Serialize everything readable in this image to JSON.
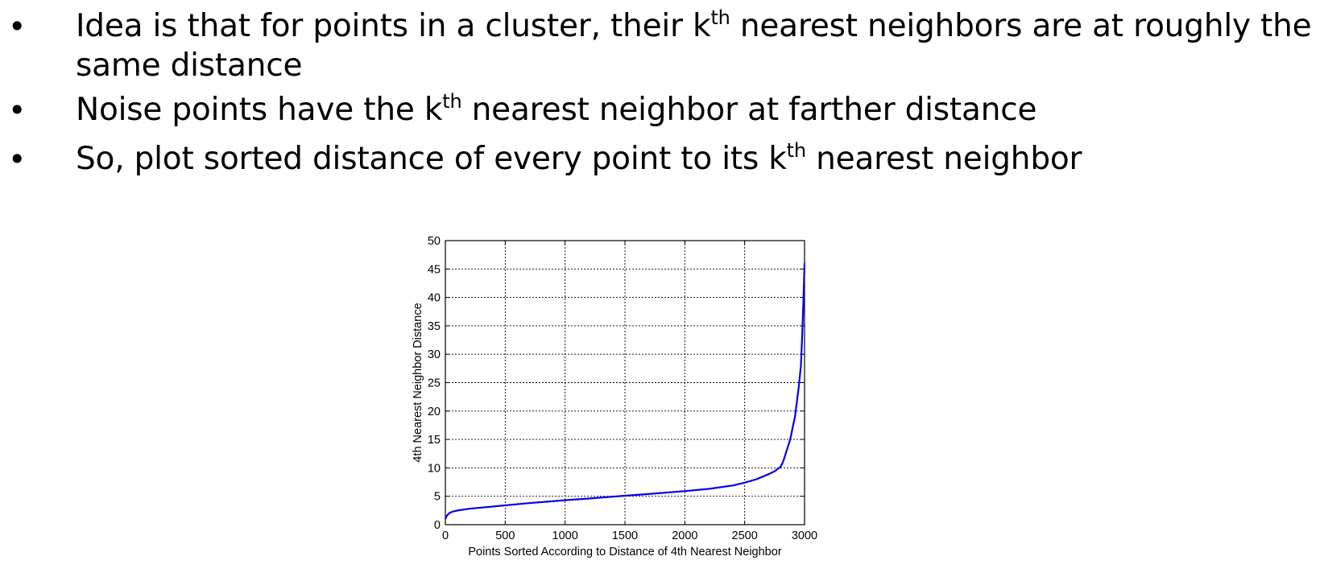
{
  "slide": {
    "bullets": [
      {
        "symbol": "•",
        "before": "Idea is that for points in a cluster, their k",
        "sup": "th",
        "after": " nearest neighbors are at roughly the same distance"
      },
      {
        "symbol": "•",
        "before": "Noise points have the k",
        "sup": "th",
        "after": " nearest neighbor at farther distance"
      },
      {
        "symbol": "•",
        "before": "So, plot sorted distance of every point to its k",
        "sup": "th",
        "after": " nearest neighbor"
      }
    ]
  },
  "chart_data": {
    "type": "line",
    "title": "",
    "xlabel": "Points Sorted According to Distance of 4th Nearest Neighbor",
    "ylabel": "4th Nearest Neighbor Distance",
    "xlim": [
      0,
      3000
    ],
    "ylim": [
      0,
      50
    ],
    "xticks": [
      "0",
      "500",
      "1000",
      "1500",
      "2000",
      "2500",
      "3000"
    ],
    "yticks": [
      "0",
      "5",
      "10",
      "15",
      "20",
      "25",
      "30",
      "35",
      "40",
      "45",
      "50"
    ],
    "grid": true,
    "line_color": "#0000ee",
    "series": [
      {
        "x": [
          0,
          10,
          30,
          60,
          100,
          200,
          300,
          500,
          700,
          1000,
          1200,
          1500,
          1700,
          2000,
          2200,
          2400,
          2500,
          2600,
          2700,
          2750,
          2800,
          2820,
          2850,
          2880,
          2900,
          2920,
          2950,
          2970,
          2980,
          2990,
          3000
        ],
        "y": [
          1.0,
          1.5,
          2.0,
          2.3,
          2.5,
          2.8,
          3.0,
          3.4,
          3.8,
          4.3,
          4.6,
          5.1,
          5.4,
          5.9,
          6.3,
          6.9,
          7.4,
          8.0,
          8.9,
          9.4,
          10.2,
          11.0,
          13.0,
          15.0,
          17.0,
          19.0,
          24.0,
          28.0,
          33.0,
          39.0,
          46.0
        ]
      }
    ]
  }
}
